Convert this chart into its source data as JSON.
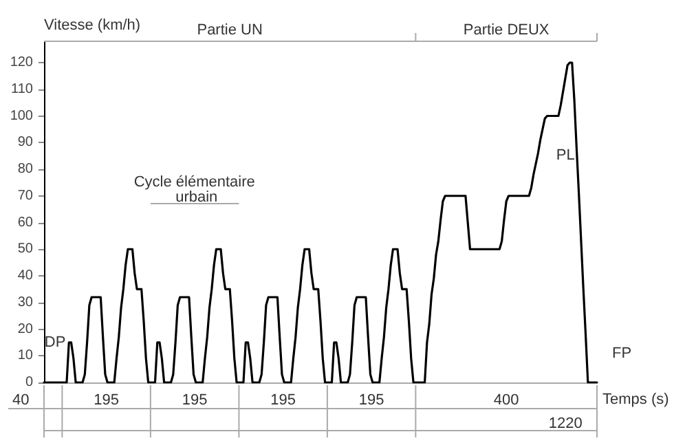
{
  "chart_data": {
    "type": "line",
    "xlabel": "Temps (s)",
    "ylabel": "Vitesse (km/h)",
    "categories": [
      null,
      null,
      null,
      null,
      null,
      null,
      null,
      null,
      null,
      null,
      null,
      null,
      null,
      null,
      null,
      null,
      null,
      null,
      null,
      null,
      null,
      null,
      null,
      null,
      null,
      null,
      null,
      null,
      null,
      null,
      null,
      null,
      null,
      null,
      null,
      null,
      null,
      null,
      null,
      null,
      null,
      null,
      null,
      null,
      null,
      null,
      null,
      null,
      null,
      null,
      null,
      null,
      null,
      null,
      null,
      null,
      null,
      null,
      null,
      null,
      null,
      null,
      null,
      null,
      null,
      null,
      null,
      null,
      null,
      null,
      null,
      null,
      null,
      null,
      null,
      null,
      null,
      null,
      null,
      null,
      null,
      null,
      null,
      null,
      null,
      null,
      null,
      null,
      null,
      null,
      null,
      null,
      null,
      null,
      null,
      null,
      null,
      null,
      null,
      null,
      null,
      null,
      null,
      null,
      null,
      null,
      null,
      null,
      null,
      null,
      null,
      null,
      null,
      null,
      null,
      null,
      null,
      null,
      null,
      null,
      null,
      null,
      null,
      null,
      null,
      null,
      null,
      null,
      null,
      null,
      null,
      null,
      null,
      null,
      null,
      null,
      null,
      null,
      null,
      null,
      null,
      null,
      null,
      null,
      null,
      null,
      null,
      null,
      null,
      null,
      null,
      null,
      null,
      null,
      null,
      null,
      null,
      null,
      null,
      null,
      null,
      null,
      null,
      null,
      null,
      null,
      null,
      null,
      null,
      null,
      null,
      null,
      null,
      null,
      null,
      null,
      null,
      null,
      null,
      null,
      null,
      null,
      null,
      null,
      null,
      null,
      null,
      null,
      null,
      null,
      null,
      null,
      null,
      null,
      null,
      null,
      null,
      null,
      null,
      null,
      null,
      null,
      null,
      null,
      null,
      null,
      null,
      null,
      null,
      null,
      null,
      null,
      null,
      null,
      null,
      null,
      null,
      null,
      null,
      null,
      null,
      null,
      null,
      null,
      null,
      null,
      null,
      null,
      null,
      null,
      null,
      null,
      null,
      null,
      null,
      null,
      null,
      null,
      null,
      null,
      null,
      null,
      null,
      null,
      null
    ],
    "ylim": [
      0,
      128
    ],
    "yticks": [
      0,
      10,
      20,
      30,
      40,
      50,
      60,
      70,
      80,
      90,
      100,
      110,
      120
    ],
    "tick_labels": "y",
    "grid": false,
    "line_style": "solid",
    "series": [
      {
        "color": "#000000",
        "values": [
          0,
          0,
          0,
          0,
          0,
          0,
          0,
          0,
          0,
          0,
          0,
          15,
          15,
          9,
          0,
          0,
          0,
          0,
          3,
          15,
          29,
          32,
          32,
          32,
          32,
          32,
          17,
          3,
          0,
          0,
          0,
          0,
          9,
          17,
          28,
          35,
          44,
          50,
          50,
          50,
          41,
          35,
          35,
          35,
          23,
          9,
          0,
          0,
          0,
          0,
          15,
          15,
          9,
          0,
          0,
          0,
          0,
          3,
          15,
          29,
          32,
          32,
          32,
          32,
          32,
          17,
          3,
          0,
          0,
          0,
          0,
          9,
          17,
          28,
          35,
          44,
          50,
          50,
          50,
          41,
          35,
          35,
          35,
          23,
          9,
          0,
          0,
          0,
          0,
          15,
          15,
          9,
          0,
          0,
          0,
          0,
          3,
          15,
          29,
          32,
          32,
          32,
          32,
          32,
          17,
          3,
          0,
          0,
          0,
          0,
          9,
          17,
          28,
          35,
          44,
          50,
          50,
          50,
          41,
          35,
          35,
          35,
          23,
          9,
          0,
          0,
          0,
          0,
          15,
          15,
          9,
          0,
          0,
          0,
          0,
          3,
          15,
          29,
          32,
          32,
          32,
          32,
          32,
          17,
          3,
          0,
          0,
          0,
          0,
          9,
          17,
          28,
          35,
          44,
          50,
          50,
          50,
          41,
          35,
          35,
          35,
          23,
          9,
          0,
          0,
          0,
          0,
          0,
          0,
          15,
          22,
          33,
          39,
          48,
          53,
          61,
          68,
          70,
          70,
          70,
          70,
          70,
          70,
          70,
          70,
          70,
          70,
          60,
          50,
          50,
          50,
          50,
          50,
          50,
          50,
          50,
          50,
          50,
          50,
          50,
          50,
          50,
          53,
          61,
          68,
          70,
          70,
          70,
          70,
          70,
          70,
          70,
          70,
          70,
          70,
          73,
          78,
          82,
          86,
          91,
          95,
          99,
          100,
          100,
          100,
          100,
          100,
          100,
          104,
          109,
          114,
          119,
          120,
          120,
          106,
          88,
          71,
          53,
          35,
          18,
          0,
          0,
          0,
          0,
          0
        ]
      }
    ],
    "annotations": [
      "Partie UN",
      "Partie DEUX",
      "Cycle élémentaire urbain",
      "PL",
      "DP",
      "FP",
      "40",
      "195",
      "195",
      "195",
      "195",
      "400",
      "1220"
    ]
  }
}
